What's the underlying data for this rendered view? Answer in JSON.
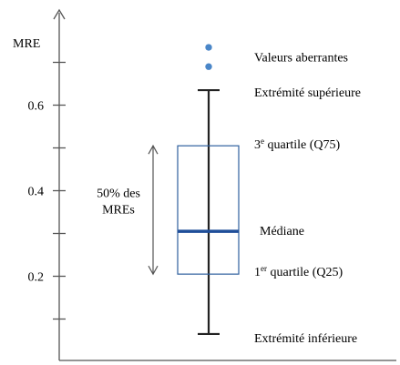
{
  "colors": {
    "axis": "#555555",
    "box_edge": "#2e5f9e",
    "median": "#1f4e99",
    "whisker": "#222222",
    "outlier": "#4a86c8",
    "text": "#000000"
  },
  "chart_data": {
    "type": "box",
    "title": "",
    "ylabel": "MRE",
    "xlabel": "",
    "ylim": [
      0.0,
      0.72
    ],
    "y_ticks": [
      0.1,
      0.2,
      0.3,
      0.4,
      0.5,
      0.6,
      0.7
    ],
    "y_tick_labels": [
      {
        "value": 0.2,
        "label": "0.2"
      },
      {
        "value": 0.4,
        "label": "0.4"
      },
      {
        "value": 0.6,
        "label": "0.6"
      }
    ],
    "box": {
      "whisker_low": 0.065,
      "q25": 0.205,
      "median": 0.305,
      "q75": 0.505,
      "whisker_high": 0.635,
      "outliers": [
        0.69,
        0.735
      ]
    },
    "annotations": {
      "outliers": "Valeurs aberrantes",
      "upper_whisker": "Extrémité supérieure",
      "q75_prefix": "3",
      "q75_sup": "e",
      "q75_suffix": " quartile (Q75)",
      "median": "Médiane",
      "q25_prefix": "1",
      "q25_sup": "er",
      "q25_suffix": " quartile (Q25)",
      "lower_whisker": "Extrémité inférieure",
      "iqr_line1": "50% des",
      "iqr_line2": "MREs"
    }
  }
}
